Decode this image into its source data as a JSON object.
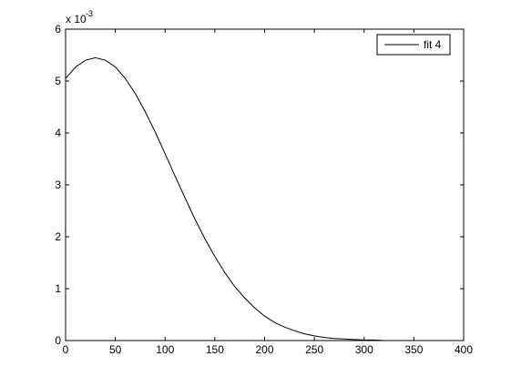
{
  "chart_data": {
    "type": "line",
    "y_multiplier": "x 10",
    "y_multiplier_exponent": "-3",
    "x": [
      0,
      10,
      20,
      30,
      40,
      50,
      60,
      70,
      80,
      90,
      100,
      110,
      120,
      130,
      140,
      150,
      160,
      170,
      180,
      190,
      200,
      210,
      220,
      230,
      240,
      250,
      260,
      270,
      280,
      290,
      300,
      310,
      320,
      330,
      340,
      350,
      360,
      370,
      380,
      390,
      400
    ],
    "series": [
      {
        "name": "fit 4",
        "color": "#000000",
        "values": [
          5.05,
          5.27,
          5.4,
          5.45,
          5.4,
          5.27,
          5.05,
          4.76,
          4.41,
          4.02,
          3.6,
          3.17,
          2.75,
          2.34,
          1.96,
          1.62,
          1.31,
          1.04,
          0.82,
          0.63,
          0.47,
          0.35,
          0.26,
          0.19,
          0.13,
          0.09,
          0.06,
          0.04,
          0.03,
          0.02,
          0.01,
          0.01,
          0,
          0,
          0,
          0,
          0,
          0,
          0,
          0,
          0
        ]
      }
    ],
    "xlim": [
      0,
      400
    ],
    "xticks": [
      0,
      50,
      100,
      150,
      200,
      250,
      300,
      350,
      400
    ],
    "ylim": [
      0,
      6
    ],
    "yticks": [
      0,
      1,
      2,
      3,
      4,
      5,
      6
    ],
    "grid": false,
    "legend": "top-right"
  }
}
